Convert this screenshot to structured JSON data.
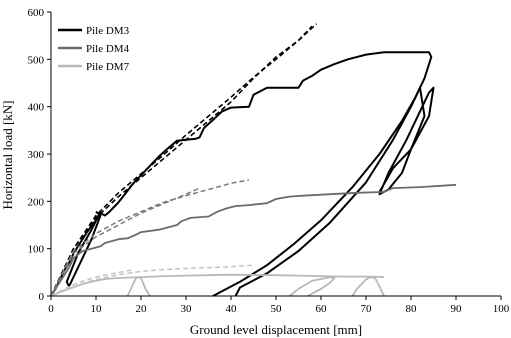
{
  "chart_data": {
    "type": "line",
    "title": "",
    "xlabel": "Ground level  displacement [mm]",
    "ylabel": "Horizontal load [kN]",
    "xlim": [
      0,
      100
    ],
    "ylim": [
      0,
      600
    ],
    "xticks": [
      0,
      10,
      20,
      30,
      40,
      50,
      60,
      70,
      80,
      90,
      100
    ],
    "yticks": [
      0,
      100,
      200,
      300,
      400,
      500,
      600
    ],
    "grid": false,
    "legend_position": "top-left",
    "series": [
      {
        "name": "Pile DM3",
        "color": "#000000",
        "width": 2.0,
        "points": [
          [
            0,
            0
          ],
          [
            1,
            15
          ],
          [
            2,
            35
          ],
          [
            3,
            55
          ],
          [
            4,
            70
          ],
          [
            5,
            90
          ],
          [
            6,
            105
          ],
          [
            7,
            120
          ],
          [
            8,
            135
          ],
          [
            9,
            148
          ],
          [
            10,
            160
          ],
          [
            11,
            175
          ],
          [
            12,
            170
          ],
          [
            13,
            178
          ],
          [
            14,
            188
          ],
          [
            15,
            198
          ],
          [
            16,
            210
          ],
          [
            17,
            222
          ],
          [
            18,
            235
          ],
          [
            19,
            245
          ],
          [
            20,
            255
          ],
          [
            22,
            275
          ],
          [
            24,
            295
          ],
          [
            26,
            312
          ],
          [
            28,
            328
          ],
          [
            30,
            330
          ],
          [
            32,
            332
          ],
          [
            33,
            335
          ],
          [
            34,
            355
          ],
          [
            36,
            372
          ],
          [
            38,
            390
          ],
          [
            40,
            398
          ],
          [
            44,
            400
          ],
          [
            45,
            425
          ],
          [
            48,
            440
          ],
          [
            52,
            440
          ],
          [
            55,
            440
          ],
          [
            56,
            455
          ],
          [
            58,
            465
          ],
          [
            60,
            478
          ],
          [
            63,
            490
          ],
          [
            66,
            500
          ],
          [
            70,
            510
          ],
          [
            74,
            515
          ],
          [
            80,
            515
          ],
          [
            84,
            515
          ],
          [
            84.5,
            505
          ],
          [
            83,
            460
          ],
          [
            81,
            420
          ],
          [
            78,
            370
          ],
          [
            73,
            300
          ],
          [
            67,
            230
          ],
          [
            60,
            160
          ],
          [
            54,
            110
          ],
          [
            48,
            65
          ],
          [
            42,
            30
          ],
          [
            38,
            10
          ],
          [
            36,
            0
          ]
        ]
      },
      {
        "name": "",
        "color": "#000000",
        "width": 2.0,
        "points": [
          [
            10,
            178
          ],
          [
            11,
            170
          ],
          [
            9,
            120
          ],
          [
            6,
            60
          ],
          [
            4,
            20
          ],
          [
            3.5,
            30
          ],
          [
            6,
            90
          ],
          [
            9,
            140
          ],
          [
            11,
            178
          ]
        ]
      },
      {
        "name": "",
        "color": "#000000",
        "width": 2.0,
        "points": [
          [
            41,
            0
          ],
          [
            42,
            18
          ],
          [
            48,
            48
          ],
          [
            55,
            95
          ],
          [
            62,
            155
          ],
          [
            70,
            240
          ],
          [
            76,
            330
          ],
          [
            80,
            400
          ],
          [
            82,
            440
          ],
          [
            83,
            380
          ],
          [
            80,
            310
          ],
          [
            78,
            260
          ],
          [
            75,
            225
          ],
          [
            73,
            215
          ],
          [
            75,
            260
          ],
          [
            79,
            330
          ],
          [
            82,
            390
          ],
          [
            84,
            430
          ],
          [
            85,
            440
          ],
          [
            84,
            380
          ],
          [
            80,
            310
          ],
          [
            76,
            270
          ],
          [
            73,
            220
          ]
        ]
      },
      {
        "name": "Pile DM4",
        "color": "#6b6b6b",
        "width": 1.8,
        "points": [
          [
            0,
            0
          ],
          [
            2,
            30
          ],
          [
            4,
            60
          ],
          [
            5,
            80
          ],
          [
            7,
            95
          ],
          [
            9,
            100
          ],
          [
            11,
            105
          ],
          [
            12,
            112
          ],
          [
            15,
            120
          ],
          [
            17,
            122
          ],
          [
            19,
            130
          ],
          [
            20,
            135
          ],
          [
            24,
            140
          ],
          [
            26,
            145
          ],
          [
            28,
            150
          ],
          [
            29,
            158
          ],
          [
            31,
            165
          ],
          [
            35,
            168
          ],
          [
            37,
            178
          ],
          [
            39,
            185
          ],
          [
            41,
            190
          ],
          [
            44,
            192
          ],
          [
            48,
            196
          ],
          [
            50,
            205
          ],
          [
            53,
            210
          ],
          [
            56,
            212
          ],
          [
            62,
            215
          ],
          [
            68,
            218
          ],
          [
            74,
            220
          ],
          [
            76,
            228
          ],
          [
            82,
            230
          ],
          [
            90,
            235
          ]
        ]
      },
      {
        "name": "Pile DM7",
        "color": "#b8b8b8",
        "width": 1.8,
        "points": [
          [
            0,
            0
          ],
          [
            2,
            8
          ],
          [
            4,
            15
          ],
          [
            6,
            22
          ],
          [
            8,
            28
          ],
          [
            10,
            32
          ],
          [
            12,
            36
          ],
          [
            15,
            38
          ],
          [
            20,
            40
          ],
          [
            25,
            42
          ],
          [
            30,
            43
          ],
          [
            40,
            45
          ],
          [
            50,
            44
          ],
          [
            55,
            43
          ],
          [
            60,
            42
          ],
          [
            65,
            41
          ],
          [
            72,
            41
          ],
          [
            74,
            40
          ]
        ]
      },
      {
        "name": "",
        "color": "#b8b8b8",
        "width": 1.8,
        "points": [
          [
            17,
            0
          ],
          [
            18,
            20
          ],
          [
            19,
            40
          ],
          [
            20,
            38
          ],
          [
            21,
            15
          ],
          [
            22,
            0
          ]
        ]
      },
      {
        "name": "",
        "color": "#b8b8b8",
        "width": 1.8,
        "points": [
          [
            53,
            0
          ],
          [
            55,
            15
          ],
          [
            58,
            32
          ],
          [
            62,
            40
          ],
          [
            63,
            38
          ],
          [
            62,
            28
          ],
          [
            60,
            15
          ],
          [
            58,
            5
          ],
          [
            57,
            0
          ]
        ]
      },
      {
        "name": "",
        "color": "#b8b8b8",
        "width": 1.8,
        "points": [
          [
            67,
            0
          ],
          [
            68,
            15
          ],
          [
            70,
            35
          ],
          [
            71,
            40
          ],
          [
            72,
            38
          ],
          [
            73,
            20
          ],
          [
            74,
            0
          ]
        ]
      },
      {
        "name": "",
        "color": "#000000",
        "width": 1.6,
        "dash": "5,3",
        "points": [
          [
            0,
            0
          ],
          [
            5,
            100
          ],
          [
            10,
            165
          ],
          [
            15,
            210
          ],
          [
            20,
            250
          ],
          [
            25,
            290
          ],
          [
            30,
            330
          ],
          [
            35,
            370
          ],
          [
            40,
            410
          ],
          [
            45,
            460
          ],
          [
            50,
            505
          ],
          [
            55,
            540
          ],
          [
            58,
            570
          ]
        ]
      },
      {
        "name": "",
        "color": "#000000",
        "width": 1.6,
        "dash": "5,3",
        "points": [
          [
            0,
            0
          ],
          [
            5,
            100
          ],
          [
            10,
            170
          ],
          [
            15,
            218
          ],
          [
            20,
            258
          ],
          [
            25,
            298
          ],
          [
            30,
            340
          ],
          [
            35,
            380
          ],
          [
            40,
            420
          ],
          [
            45,
            462
          ],
          [
            50,
            500
          ],
          [
            55,
            540
          ],
          [
            59,
            575
          ]
        ]
      },
      {
        "name": "",
        "color": "#7a7a7a",
        "width": 1.5,
        "dash": "5,3",
        "points": [
          [
            0,
            0
          ],
          [
            5,
            90
          ],
          [
            10,
            125
          ],
          [
            15,
            150
          ],
          [
            20,
            175
          ],
          [
            25,
            195
          ],
          [
            30,
            215
          ],
          [
            33,
            228
          ]
        ]
      },
      {
        "name": "",
        "color": "#7a7a7a",
        "width": 1.5,
        "dash": "5,3",
        "points": [
          [
            0,
            0
          ],
          [
            5,
            95
          ],
          [
            10,
            132
          ],
          [
            15,
            158
          ],
          [
            20,
            178
          ],
          [
            25,
            198
          ],
          [
            30,
            212
          ],
          [
            35,
            225
          ],
          [
            40,
            238
          ],
          [
            44,
            245
          ]
        ]
      },
      {
        "name": "",
        "color": "#c4c4c4",
        "width": 1.5,
        "dash": "5,3",
        "points": [
          [
            0,
            0
          ],
          [
            3,
            15
          ],
          [
            6,
            28
          ],
          [
            10,
            40
          ],
          [
            14,
            48
          ],
          [
            18,
            55
          ]
        ]
      },
      {
        "name": "",
        "color": "#c4c4c4",
        "width": 1.5,
        "dash": "5,3",
        "points": [
          [
            0,
            0
          ],
          [
            5,
            20
          ],
          [
            10,
            35
          ],
          [
            15,
            45
          ],
          [
            20,
            52
          ],
          [
            25,
            56
          ],
          [
            30,
            58
          ],
          [
            35,
            60
          ],
          [
            40,
            62
          ],
          [
            45,
            65
          ]
        ]
      }
    ]
  }
}
